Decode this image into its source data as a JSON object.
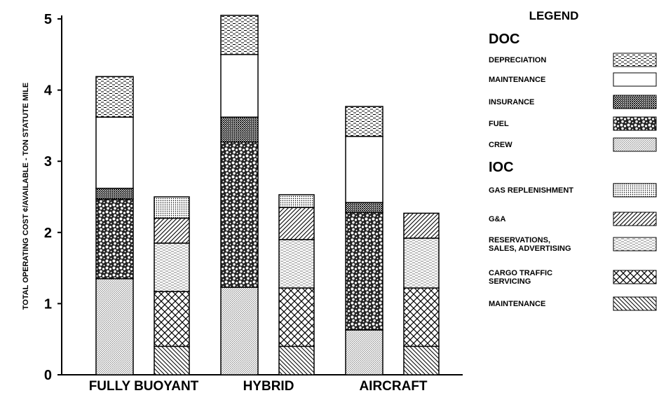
{
  "chart_data": {
    "type": "bar",
    "stacked": true,
    "y_label": "TOTAL OPERATING COST ¢/AVAILABLE - TON STATUTE MILE",
    "categories": [
      "FULLY BUOYANT",
      "HYBRID",
      "AIRCRAFT"
    ],
    "ylim": [
      0,
      5
    ],
    "yticks": [
      0,
      1,
      2,
      3,
      4,
      5
    ],
    "legend_title": "LEGEND",
    "groups": [
      {
        "name": "DOC",
        "series": [
          {
            "name": "DEPRECIATION",
            "pattern": "dash",
            "values": [
              0.57,
              0.55,
              0.42
            ]
          },
          {
            "name": "MAINTENANCE",
            "pattern": "blank",
            "values": [
              1.0,
              0.88,
              0.93
            ]
          },
          {
            "name": "INSURANCE",
            "pattern": "checker",
            "values": [
              0.15,
              0.35,
              0.14
            ]
          },
          {
            "name": "FUEL",
            "pattern": "pebble",
            "values": [
              1.12,
              2.04,
              1.65
            ]
          },
          {
            "name": "CREW",
            "pattern": "fine",
            "values": [
              1.35,
              1.23,
              0.63
            ]
          }
        ]
      },
      {
        "name": "IOC",
        "series": [
          {
            "name": "GAS REPLENISHMENT",
            "pattern": "dots",
            "values": [
              0.3,
              0.18,
              null
            ]
          },
          {
            "name": "G&A",
            "pattern": "slash",
            "values": [
              0.35,
              0.45,
              0.35
            ]
          },
          {
            "name": "RESERVATIONS, SALES, ADVERTISING",
            "pattern": "lightdash",
            "values": [
              0.68,
              0.68,
              0.7
            ]
          },
          {
            "name": "CARGO TRAFFIC SERVICING",
            "pattern": "cross",
            "values": [
              0.77,
              0.82,
              0.82
            ]
          },
          {
            "name": "MAINTENANCE",
            "pattern": "backslash",
            "values": [
              0.4,
              0.4,
              0.4
            ]
          }
        ]
      }
    ]
  }
}
